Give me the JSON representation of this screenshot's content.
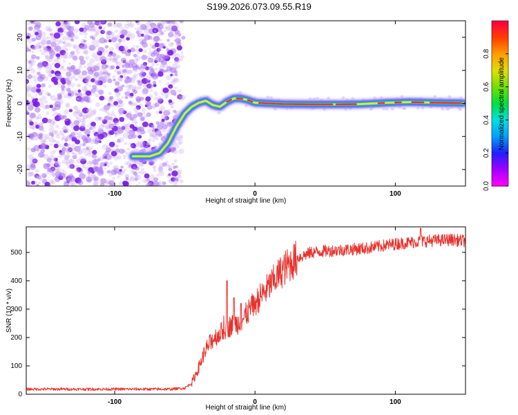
{
  "title": "S199.2026.073.09.55.R19",
  "chart_data": [
    {
      "type": "heatmap",
      "xlabel": "Height of straight line (km)",
      "ylabel": "Frequency (Hz)",
      "xlim": [
        -163,
        150
      ],
      "ylim": [
        -25,
        25
      ],
      "xticks": [
        -100,
        0,
        100
      ],
      "xtick_labels": [
        "-100",
        "0",
        "100"
      ],
      "yticks": [
        -20,
        -10,
        0,
        10,
        20
      ],
      "ytick_labels": [
        "-20",
        "-10",
        "0",
        "10",
        "20"
      ],
      "colorbar": {
        "label": "Normalized spectral amplitude",
        "range": [
          0,
          1
        ],
        "ticks": [
          0.0,
          0.2,
          0.4,
          0.6,
          0.8
        ],
        "tick_labels": [
          "0.0",
          "0.2",
          "0.4",
          "0.6",
          "0.8"
        ]
      },
      "ridge": {
        "x": [
          -87,
          -75,
          -68,
          -62,
          -56,
          -50,
          -45,
          -40,
          -35,
          -30,
          -25,
          -20,
          -15,
          -10,
          -5,
          0,
          10,
          20,
          40,
          60,
          75,
          85,
          95,
          110,
          130,
          148
        ],
        "freq": [
          -16,
          -16,
          -15,
          -12,
          -7,
          -3,
          -1,
          0.2,
          0.8,
          -0.5,
          -1,
          0.5,
          1.5,
          1.5,
          1,
          0.2,
          0,
          -0.2,
          -0.3,
          -0.3,
          -0.2,
          0,
          0.2,
          0.4,
          0.2,
          0.1
        ]
      }
    },
    {
      "type": "line",
      "xlabel": "Height of straight line (km)",
      "ylabel": "SNR (10 * v/v)",
      "xlim": [
        -163,
        150
      ],
      "ylim": [
        0,
        590
      ],
      "xticks": [
        -100,
        0,
        100
      ],
      "xtick_labels": [
        "-100",
        "0",
        "100"
      ],
      "yticks": [
        0,
        100,
        200,
        300,
        400,
        500
      ],
      "ytick_labels": [
        "0",
        "100",
        "200",
        "300",
        "400",
        "500"
      ],
      "color": "#e8322d",
      "series_profile": {
        "x": [
          -163,
          -120,
          -60,
          -50,
          -45,
          -40,
          -35,
          -30,
          -25,
          -20,
          -15,
          -10,
          -5,
          0,
          5,
          10,
          15,
          20,
          25,
          30,
          40,
          50,
          60,
          80,
          100,
          120,
          140,
          150
        ],
        "y": [
          18,
          18,
          18,
          22,
          40,
          95,
          160,
          195,
          215,
          235,
          245,
          255,
          290,
          320,
          350,
          380,
          410,
          440,
          460,
          480,
          500,
          505,
          508,
          515,
          530,
          540,
          545,
          540
        ]
      },
      "spikes": [
        {
          "x": -20,
          "y": 400
        },
        {
          "x": -15,
          "y": 340
        },
        {
          "x": -10,
          "y": 320
        },
        {
          "x": 118,
          "y": 585
        }
      ]
    }
  ]
}
